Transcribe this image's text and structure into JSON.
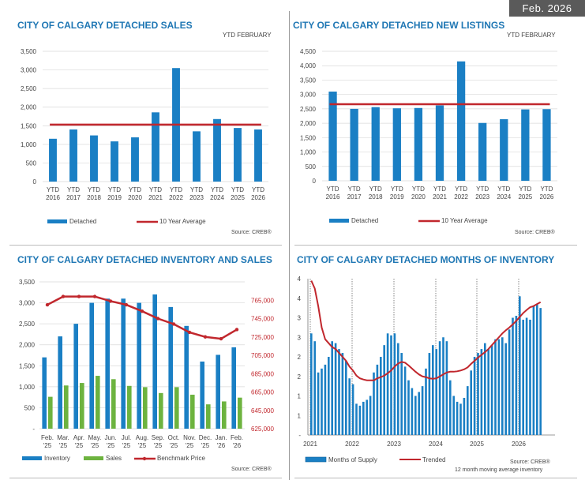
{
  "badge": "Feb. 2026",
  "colors": {
    "blue": "#1a7fc4",
    "green": "#6db33f",
    "red": "#c1272d",
    "title": "#1f77b4"
  },
  "chart_data": [
    {
      "type": "bar",
      "title": "CITY OF CALGARY DETACHED SALES",
      "subtitle": "YTD  FEBRUARY",
      "source": "Source: CREB®",
      "categories": [
        [
          "YTD",
          "2016"
        ],
        [
          "YTD",
          "2017"
        ],
        [
          "YTD",
          "2018"
        ],
        [
          "YTD",
          "2019"
        ],
        [
          "YTD",
          "2020"
        ],
        [
          "YTD",
          "2021"
        ],
        [
          "YTD",
          "2022"
        ],
        [
          "YTD",
          "2023"
        ],
        [
          "YTD",
          "2024"
        ],
        [
          "YTD",
          "2025"
        ],
        [
          "YTD",
          "2026"
        ]
      ],
      "series": [
        {
          "name": "Detached",
          "values": [
            1150,
            1400,
            1240,
            1080,
            1190,
            1860,
            3050,
            1350,
            1680,
            1440,
            1400
          ]
        }
      ],
      "average": {
        "name": "10 Year Average",
        "value": 1530
      },
      "ylim": [
        0,
        3500
      ],
      "yticks": [
        "0",
        "500",
        "1,000",
        "1,500",
        "2,000",
        "2,500",
        "3,000",
        "3,500"
      ],
      "ytick_values": [
        0,
        500,
        1000,
        1500,
        2000,
        2500,
        3000,
        3500
      ]
    },
    {
      "type": "bar",
      "title": "CITY OF CALGARY DETACHED NEW LISTINGS",
      "subtitle": "YTD  FEBRUARY",
      "source": "Source: CREB®",
      "categories": [
        [
          "YTD",
          "2016"
        ],
        [
          "YTD",
          "2017"
        ],
        [
          "YTD",
          "2018"
        ],
        [
          "YTD",
          "2019"
        ],
        [
          "YTD",
          "2020"
        ],
        [
          "YTD",
          "2021"
        ],
        [
          "YTD",
          "2022"
        ],
        [
          "YTD",
          "2023"
        ],
        [
          "YTD",
          "2024"
        ],
        [
          "YTD",
          "2025"
        ],
        [
          "YTD",
          "2026"
        ]
      ],
      "series": [
        {
          "name": "Detached",
          "values": [
            3100,
            2500,
            2560,
            2520,
            2530,
            2620,
            4150,
            2010,
            2140,
            2480,
            2490
          ]
        }
      ],
      "average": {
        "name": "10 Year Average",
        "value": 2660
      },
      "ylim": [
        0,
        4500
      ],
      "yticks": [
        "0",
        "500",
        "1,000",
        "1,500",
        "2,000",
        "2,500",
        "3,000",
        "3,500",
        "4,000",
        "4,500"
      ],
      "ytick_values": [
        0,
        500,
        1000,
        1500,
        2000,
        2500,
        3000,
        3500,
        4000,
        4500
      ]
    },
    {
      "type": "bar",
      "title": "CITY OF CALGARY DETACHED INVENTORY AND SALES",
      "source": "Source: CREB®",
      "categories": [
        [
          "Feb.",
          "'25"
        ],
        [
          "Mar.",
          "'25"
        ],
        [
          "Apr.",
          "'25"
        ],
        [
          "May.",
          "'25"
        ],
        [
          "Jun.",
          "'25"
        ],
        [
          "Jul.",
          "'25"
        ],
        [
          "Aug.",
          "'25"
        ],
        [
          "Sep.",
          "'25"
        ],
        [
          "Oct.",
          "'25"
        ],
        [
          "Nov.",
          "'25"
        ],
        [
          "Dec.",
          "'25"
        ],
        [
          "Jan.",
          "'26"
        ],
        [
          "Feb.",
          "'26"
        ]
      ],
      "series": [
        {
          "name": "Inventory",
          "values": [
            1700,
            2200,
            2500,
            3000,
            3100,
            3100,
            3000,
            3200,
            2900,
            2450,
            1600,
            1760,
            1940
          ]
        },
        {
          "name": "Sales",
          "values": [
            760,
            1030,
            1090,
            1260,
            1180,
            1020,
            990,
            850,
            990,
            810,
            580,
            650,
            740
          ]
        },
        {
          "name": "Benchmark Price",
          "values": [
            760000,
            769000,
            769000,
            769000,
            764000,
            760000,
            753000,
            745000,
            739000,
            730000,
            725000,
            723000,
            733000
          ]
        }
      ],
      "ylim": [
        0,
        3500
      ],
      "yticks": [
        "-",
        "500",
        "1,000",
        "1,500",
        "2,000",
        "2,500",
        "3,000",
        "3,500"
      ],
      "ytick_values": [
        0,
        500,
        1000,
        1500,
        2000,
        2500,
        3000,
        3500
      ],
      "y2lim": [
        625000,
        785000
      ],
      "y2ticks": [
        "625,000",
        "645,000",
        "665,000",
        "685,000",
        "705,000",
        "725,000",
        "745,000",
        "765,000"
      ],
      "y2tick_values": [
        625000,
        645000,
        665000,
        685000,
        705000,
        725000,
        745000,
        765000
      ]
    },
    {
      "type": "bar",
      "title": "CITY OF CALGARY DETACHED MONTHS OF INVENTORY",
      "source": "Source: CREB®",
      "note": "12 month moving average inventory",
      "xlabels": [
        "2021",
        "2022",
        "2023",
        "2024",
        "2025",
        "2026"
      ],
      "ylim": [
        0,
        4
      ],
      "yticks": [
        "-",
        "1",
        "1",
        "2",
        "2",
        "3",
        "3",
        "4",
        "4"
      ],
      "ytick_values": [
        0,
        0.5,
        1,
        1.5,
        2,
        2.5,
        3,
        3.5,
        4
      ],
      "series": [
        {
          "name": "Months of Supply",
          "values": [
            2.6,
            2.4,
            1.6,
            1.7,
            1.8,
            2.0,
            2.4,
            2.35,
            2.2,
            2.1,
            1.9,
            1.45,
            1.3,
            0.8,
            0.75,
            0.85,
            0.9,
            1.0,
            1.6,
            1.8,
            2.0,
            2.3,
            2.6,
            2.55,
            2.6,
            2.35,
            2.1,
            1.75,
            1.4,
            1.2,
            1.0,
            1.1,
            1.25,
            1.7,
            2.1,
            2.3,
            2.2,
            2.4,
            2.5,
            2.4,
            1.4,
            1.0,
            0.85,
            0.8,
            0.95,
            1.25,
            1.65,
            2.0,
            2.1,
            2.2,
            2.35,
            2.2,
            2.3,
            2.45,
            2.45,
            2.5,
            2.35,
            2.7,
            3.0,
            3.05,
            3.55,
            2.95,
            3.0,
            2.95,
            3.3,
            3.35,
            3.25
          ]
        },
        {
          "name": "Trended",
          "values": [
            3.95,
            3.75,
            3.3,
            2.75,
            2.45,
            2.35,
            2.25,
            2.2,
            2.1,
            2.0,
            1.9,
            1.75,
            1.65,
            1.52,
            1.45,
            1.42,
            1.4,
            1.4,
            1.4,
            1.45,
            1.48,
            1.52,
            1.58,
            1.65,
            1.75,
            1.83,
            1.87,
            1.85,
            1.78,
            1.7,
            1.62,
            1.55,
            1.5,
            1.48,
            1.45,
            1.44,
            1.45,
            1.5,
            1.55,
            1.6,
            1.62,
            1.62,
            1.63,
            1.65,
            1.68,
            1.73,
            1.82,
            1.9,
            1.98,
            2.05,
            2.12,
            2.2,
            2.3,
            2.4,
            2.5,
            2.6,
            2.68,
            2.75,
            2.83,
            2.92,
            3.02,
            3.12,
            3.2,
            3.27,
            3.3,
            3.35,
            3.4
          ]
        }
      ]
    }
  ]
}
